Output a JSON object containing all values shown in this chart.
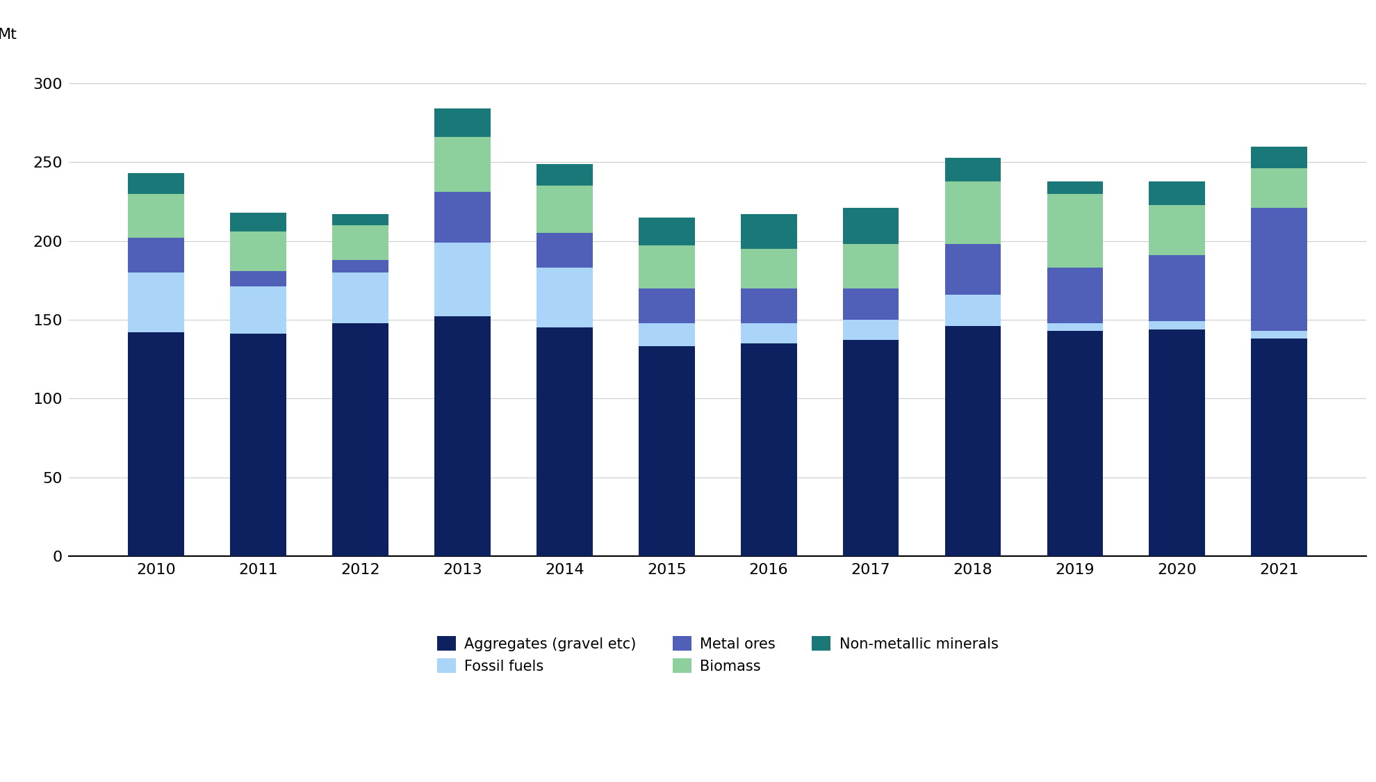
{
  "years": [
    2010,
    2011,
    2012,
    2013,
    2014,
    2015,
    2016,
    2017,
    2018,
    2019,
    2020,
    2021
  ],
  "aggregates": [
    142,
    141,
    148,
    152,
    145,
    133,
    135,
    137,
    146,
    143,
    144,
    138
  ],
  "fossil_fuels": [
    38,
    30,
    32,
    47,
    38,
    15,
    13,
    13,
    20,
    5,
    5,
    5
  ],
  "metal_ores": [
    22,
    10,
    8,
    32,
    22,
    22,
    22,
    20,
    32,
    35,
    42,
    78
  ],
  "biomass": [
    28,
    25,
    22,
    35,
    30,
    27,
    25,
    28,
    40,
    47,
    32,
    25
  ],
  "non_metallic": [
    13,
    12,
    7,
    18,
    14,
    18,
    22,
    23,
    15,
    8,
    15,
    14
  ],
  "colors": {
    "aggregates": "#0d2060",
    "fossil_fuels": "#aad4f8",
    "metal_ores": "#5060b8",
    "biomass": "#8ecf9e",
    "non_metallic": "#1a7878"
  },
  "ylabel": "Mt",
  "ylim": [
    0,
    320
  ],
  "yticks": [
    0,
    50,
    100,
    150,
    200,
    250,
    300
  ],
  "legend_labels": [
    "Aggregates (gravel etc)",
    "Fossil fuels",
    "Metal ores",
    "Biomass",
    "Non-metallic minerals"
  ],
  "background_color": "#ffffff",
  "grid_color": "#cccccc",
  "tick_fontsize": 16,
  "legend_fontsize": 15
}
